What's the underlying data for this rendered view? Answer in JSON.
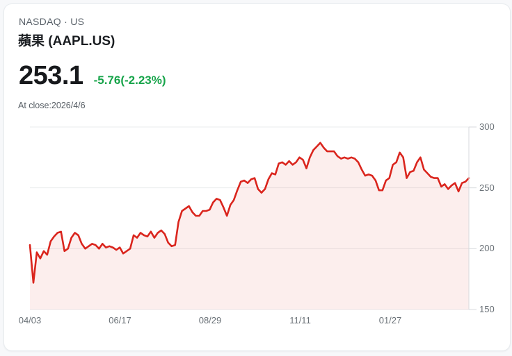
{
  "quote_card": {
    "exchange_line": "NASDAQ · US",
    "title": "蘋果 (AAPL.US)",
    "price": "253.1",
    "change": "-5.76(-2.23%)",
    "as_of": "At close:2026/4/6",
    "colors": {
      "change_green": "#17a44a",
      "price_black": "#17191c"
    }
  },
  "chart_data": {
    "type": "area",
    "title": "AAPL.US one-year price history",
    "xlabel": "",
    "ylabel": "",
    "x_ticks": [
      "04/03",
      "06/17",
      "08/29",
      "11/11",
      "01/27"
    ],
    "y_ticks": [
      300,
      250,
      200,
      150
    ],
    "ylim": [
      150,
      300
    ],
    "grid": true,
    "legend": "none",
    "line_color": "#da251d",
    "fill_color": "rgba(218,37,29,0.08)",
    "grid_color": "#e9ebed",
    "axis_color": "#d7dadd",
    "prices": [
      203,
      172,
      197,
      192,
      198,
      195,
      206,
      210,
      213,
      214,
      198,
      200,
      209,
      213,
      211,
      204,
      200,
      202,
      204,
      203,
      200,
      204,
      201,
      202,
      201,
      199,
      201,
      196,
      198,
      200,
      211,
      209,
      213,
      211,
      210,
      214,
      209,
      213,
      215,
      212,
      205,
      202,
      203,
      222,
      231,
      233,
      235,
      230,
      227,
      227,
      231,
      231,
      232,
      238,
      241,
      240,
      234,
      227,
      236,
      240,
      248,
      255,
      256,
      254,
      257,
      258,
      249,
      246,
      249,
      257,
      262,
      261,
      270,
      271,
      269,
      272,
      269,
      271,
      275,
      273,
      266,
      275,
      281,
      284,
      287,
      283,
      280,
      280,
      280,
      276,
      274,
      275,
      274,
      275,
      274,
      271,
      265,
      260,
      261,
      260,
      256,
      248,
      248,
      256,
      258,
      269,
      271,
      279,
      275,
      258,
      263,
      264,
      271,
      275,
      265,
      262,
      259,
      258,
      258,
      251,
      253,
      249,
      252,
      254,
      247,
      254,
      255,
      258
    ]
  }
}
